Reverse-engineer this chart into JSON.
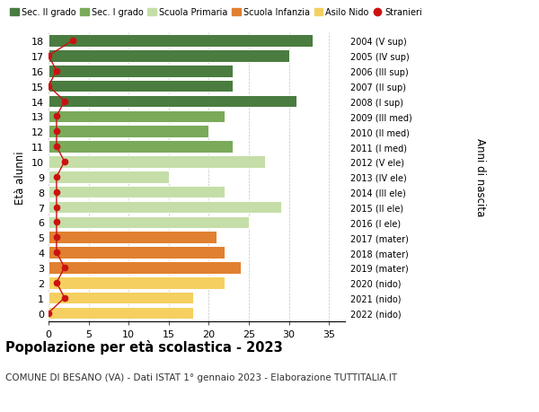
{
  "ages": [
    18,
    17,
    16,
    15,
    14,
    13,
    12,
    11,
    10,
    9,
    8,
    7,
    6,
    5,
    4,
    3,
    2,
    1,
    0
  ],
  "right_labels": [
    "2004 (V sup)",
    "2005 (IV sup)",
    "2006 (III sup)",
    "2007 (II sup)",
    "2008 (I sup)",
    "2009 (III med)",
    "2010 (II med)",
    "2011 (I med)",
    "2012 (V ele)",
    "2013 (IV ele)",
    "2014 (III ele)",
    "2015 (II ele)",
    "2016 (I ele)",
    "2017 (mater)",
    "2018 (mater)",
    "2019 (mater)",
    "2020 (nido)",
    "2021 (nido)",
    "2022 (nido)"
  ],
  "bar_values": [
    33,
    30,
    23,
    23,
    31,
    22,
    20,
    23,
    27,
    15,
    22,
    29,
    25,
    21,
    22,
    24,
    22,
    18,
    18
  ],
  "bar_colors": [
    "#4a7c3f",
    "#4a7c3f",
    "#4a7c3f",
    "#4a7c3f",
    "#4a7c3f",
    "#7aaa5a",
    "#7aaa5a",
    "#7aaa5a",
    "#c5dea8",
    "#c5dea8",
    "#c5dea8",
    "#c5dea8",
    "#c5dea8",
    "#e08030",
    "#e08030",
    "#e08030",
    "#f5d060",
    "#f5d060",
    "#f5d060"
  ],
  "stranieri_values": [
    3,
    0,
    1,
    0,
    2,
    1,
    1,
    1,
    2,
    1,
    1,
    1,
    1,
    1,
    1,
    2,
    1,
    2,
    0
  ],
  "legend_labels": [
    "Sec. II grado",
    "Sec. I grado",
    "Scuola Primaria",
    "Scuola Infanzia",
    "Asilo Nido",
    "Stranieri"
  ],
  "legend_colors": [
    "#4a7c3f",
    "#7aaa5a",
    "#c5dea8",
    "#e08030",
    "#f5d060",
    "#cc1111"
  ],
  "ylabel": "Età alunni",
  "right_ylabel": "Anni di nascita",
  "title": "Popolazione per età scolastica - 2023",
  "subtitle": "COMUNE DI BESANO (VA) - Dati ISTAT 1° gennaio 2023 - Elaborazione TUTTITALIA.IT",
  "xlim": [
    0,
    37
  ],
  "xticks": [
    0,
    5,
    10,
    15,
    20,
    25,
    30,
    35
  ],
  "stranieri_color": "#cc1111"
}
